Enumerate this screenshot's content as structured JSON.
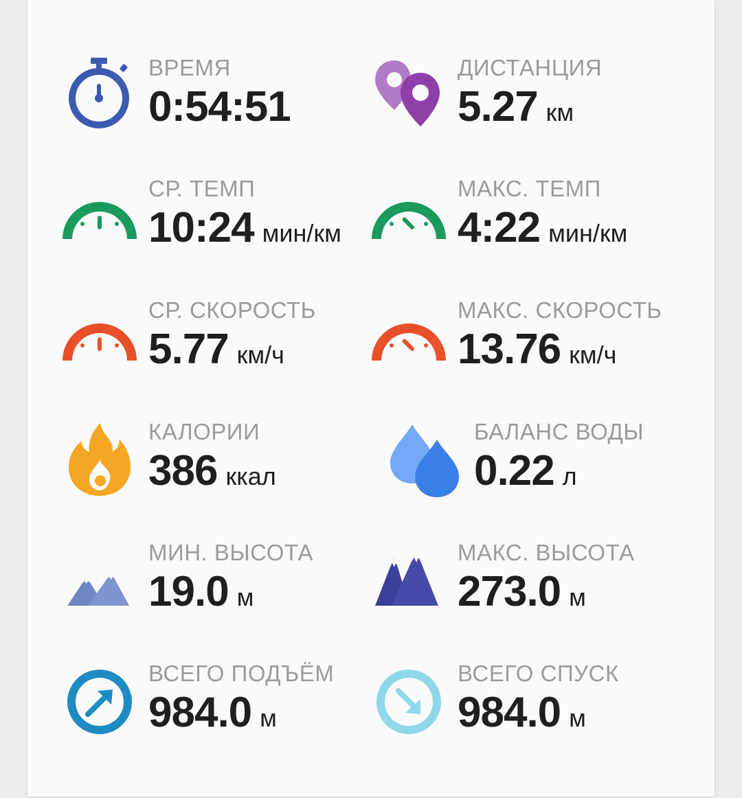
{
  "stats": [
    {
      "label": "ВРЕМЯ",
      "value": "0:54:51",
      "unit": "",
      "icon": "stopwatch-icon",
      "color": "#3d5ab1"
    },
    {
      "label": "ДИСТАНЦИЯ",
      "value": "5.27",
      "unit": "км",
      "icon": "location-pins-icon",
      "color": "#8e44ad"
    },
    {
      "label": "СР. ТЕМП",
      "value": "10:24",
      "unit": "мин/км",
      "icon": "speedometer-icon",
      "color": "#1a9a5c"
    },
    {
      "label": "МАКС. ТЕМП",
      "value": "4:22",
      "unit": "мин/км",
      "icon": "speedometer-fast-icon",
      "color": "#1a9a5c"
    },
    {
      "label": "СР. СКОРОСТЬ",
      "value": "5.77",
      "unit": "км/ч",
      "icon": "speedometer-icon",
      "color": "#e8502a"
    },
    {
      "label": "МАКС. СКОРОСТЬ",
      "value": "13.76",
      "unit": "км/ч",
      "icon": "speedometer-fast-icon",
      "color": "#e8502a"
    },
    {
      "label": "КАЛОРИИ",
      "value": "386",
      "unit": "ккал",
      "icon": "flame-icon",
      "color": "#f5a623"
    },
    {
      "label": "БАЛАНС ВОДЫ",
      "value": "0.22",
      "unit": "л",
      "icon": "water-drops-icon",
      "color": "#4a8cf0"
    },
    {
      "label": "МИН. ВЫСОТА",
      "value": "19.0",
      "unit": "м",
      "icon": "mountains-low-icon",
      "color": "#6f86c4"
    },
    {
      "label": "МАКС. ВЫСОТА",
      "value": "273.0",
      "unit": "м",
      "icon": "mountains-high-icon",
      "color": "#3c3f97"
    },
    {
      "label": "ВСЕГО ПОДЪЁМ",
      "value": "984.0",
      "unit": "м",
      "icon": "ascent-arrow-icon",
      "color": "#1e8bc3"
    },
    {
      "label": "ВСЕГО СПУСК",
      "value": "984.0",
      "unit": "м",
      "icon": "descent-arrow-icon",
      "color": "#8fd8ea"
    }
  ]
}
